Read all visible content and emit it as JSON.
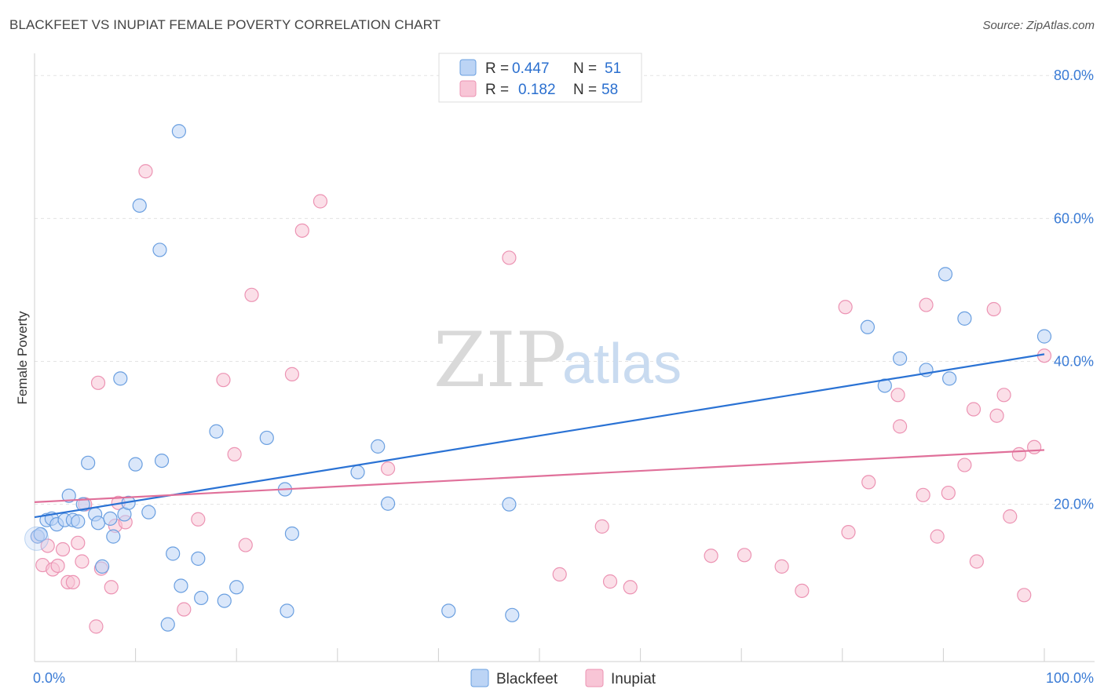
{
  "title": "BLACKFEET VS INUPIAT FEMALE POVERTY CORRELATION CHART",
  "source": "Source: ZipAtlas.com",
  "watermark": {
    "zip": "ZIP",
    "atlas": "atlas"
  },
  "colors": {
    "blackfeet_fill": "#bcd4f5",
    "blackfeet_stroke": "#6a9fe0",
    "blackfeet_line": "#2a72d4",
    "inupiat_fill": "#f8c5d6",
    "inupiat_stroke": "#ec93b3",
    "inupiat_line": "#e0709a",
    "tick": "#3a7bd5",
    "grid": "#e3e3e3"
  },
  "legend": {
    "rows": [
      {
        "r_label": "R =",
        "r_value": "0.447",
        "n_label": "N =",
        "n_value": "51"
      },
      {
        "r_label": "R =",
        "r_value": "0.182",
        "n_label": "N =",
        "n_value": "58"
      }
    ]
  },
  "chart_data": {
    "type": "scatter",
    "xlabel": "",
    "ylabel": "Female Poverty",
    "xlim": [
      0,
      100
    ],
    "ylim": [
      -2,
      82
    ],
    "x_tick_labels": [
      {
        "value": 0,
        "label": "0.0%"
      },
      {
        "value": 100,
        "label": "100.0%"
      }
    ],
    "y_tick_labels": [
      {
        "value": 20,
        "label": "20.0%"
      },
      {
        "value": 40,
        "label": "40.0%"
      },
      {
        "value": 60,
        "label": "60.0%"
      },
      {
        "value": 80,
        "label": "80.0%"
      }
    ],
    "grid": true,
    "legend_position": "bottom-center",
    "series": [
      {
        "name": "Blackfeet",
        "trend": [
          [
            0,
            18.2
          ],
          [
            100,
            41.0
          ]
        ],
        "points": [
          [
            0.3,
            15.5
          ],
          [
            0.6,
            15.8
          ],
          [
            1.2,
            17.8
          ],
          [
            1.7,
            18.0
          ],
          [
            2.2,
            17.2
          ],
          [
            3.0,
            17.8
          ],
          [
            3.4,
            21.2
          ],
          [
            3.8,
            17.8
          ],
          [
            4.3,
            17.6
          ],
          [
            4.8,
            20.0
          ],
          [
            5.3,
            25.8
          ],
          [
            6.0,
            18.6
          ],
          [
            6.3,
            17.4
          ],
          [
            6.7,
            11.3
          ],
          [
            7.5,
            18.0
          ],
          [
            7.8,
            15.5
          ],
          [
            8.5,
            37.6
          ],
          [
            8.9,
            18.6
          ],
          [
            9.3,
            20.2
          ],
          [
            10.0,
            25.6
          ],
          [
            10.4,
            61.8
          ],
          [
            11.3,
            18.9
          ],
          [
            12.4,
            55.6
          ],
          [
            12.6,
            26.1
          ],
          [
            13.2,
            3.2
          ],
          [
            13.7,
            13.1
          ],
          [
            14.3,
            72.2
          ],
          [
            14.5,
            8.6
          ],
          [
            16.2,
            12.4
          ],
          [
            16.5,
            6.9
          ],
          [
            18.0,
            30.2
          ],
          [
            18.8,
            6.5
          ],
          [
            20.0,
            8.4
          ],
          [
            23.0,
            29.3
          ],
          [
            24.8,
            22.1
          ],
          [
            25.0,
            5.1
          ],
          [
            25.5,
            15.9
          ],
          [
            32.0,
            24.5
          ],
          [
            34.0,
            28.1
          ],
          [
            35.0,
            20.1
          ],
          [
            41.0,
            5.1
          ],
          [
            47.0,
            20.0
          ],
          [
            47.3,
            4.5
          ],
          [
            82.5,
            44.8
          ],
          [
            84.2,
            36.6
          ],
          [
            85.7,
            40.4
          ],
          [
            88.3,
            38.8
          ],
          [
            90.2,
            52.2
          ],
          [
            90.6,
            37.6
          ],
          [
            92.1,
            46.0
          ],
          [
            100.0,
            43.5
          ]
        ]
      },
      {
        "name": "Inupiat",
        "trend": [
          [
            0,
            20.3
          ],
          [
            100,
            27.6
          ]
        ],
        "points": [
          [
            0.3,
            15.5
          ],
          [
            0.8,
            11.5
          ],
          [
            1.3,
            14.2
          ],
          [
            1.8,
            10.9
          ],
          [
            2.3,
            11.4
          ],
          [
            2.8,
            13.7
          ],
          [
            3.3,
            9.1
          ],
          [
            3.8,
            9.1
          ],
          [
            4.3,
            14.6
          ],
          [
            4.7,
            12.0
          ],
          [
            5.0,
            20.0
          ],
          [
            6.1,
            2.9
          ],
          [
            6.3,
            37.0
          ],
          [
            6.6,
            11.0
          ],
          [
            7.6,
            8.4
          ],
          [
            8.0,
            17.0
          ],
          [
            8.3,
            20.2
          ],
          [
            9.0,
            17.5
          ],
          [
            11.0,
            66.6
          ],
          [
            14.8,
            5.3
          ],
          [
            16.2,
            17.9
          ],
          [
            18.7,
            37.4
          ],
          [
            19.8,
            27.0
          ],
          [
            20.9,
            14.3
          ],
          [
            21.5,
            49.3
          ],
          [
            25.5,
            38.2
          ],
          [
            26.5,
            58.3
          ],
          [
            28.3,
            62.4
          ],
          [
            35.0,
            25.0
          ],
          [
            47.0,
            54.5
          ],
          [
            52.0,
            10.2
          ],
          [
            56.2,
            16.9
          ],
          [
            57.0,
            9.2
          ],
          [
            59.0,
            8.4
          ],
          [
            67.0,
            12.8
          ],
          [
            70.3,
            12.9
          ],
          [
            74.0,
            11.3
          ],
          [
            76.0,
            7.9
          ],
          [
            80.3,
            47.6
          ],
          [
            80.6,
            16.1
          ],
          [
            82.6,
            23.1
          ],
          [
            85.5,
            35.3
          ],
          [
            85.7,
            30.9
          ],
          [
            88.0,
            21.3
          ],
          [
            88.3,
            47.9
          ],
          [
            89.4,
            15.5
          ],
          [
            90.5,
            21.6
          ],
          [
            92.1,
            25.5
          ],
          [
            93.0,
            33.3
          ],
          [
            93.3,
            12.0
          ],
          [
            95.0,
            47.3
          ],
          [
            95.3,
            32.4
          ],
          [
            96.0,
            35.3
          ],
          [
            96.6,
            18.3
          ],
          [
            97.5,
            27.0
          ],
          [
            98.0,
            7.3
          ],
          [
            99.0,
            28.0
          ],
          [
            100.0,
            40.8
          ]
        ]
      }
    ]
  }
}
